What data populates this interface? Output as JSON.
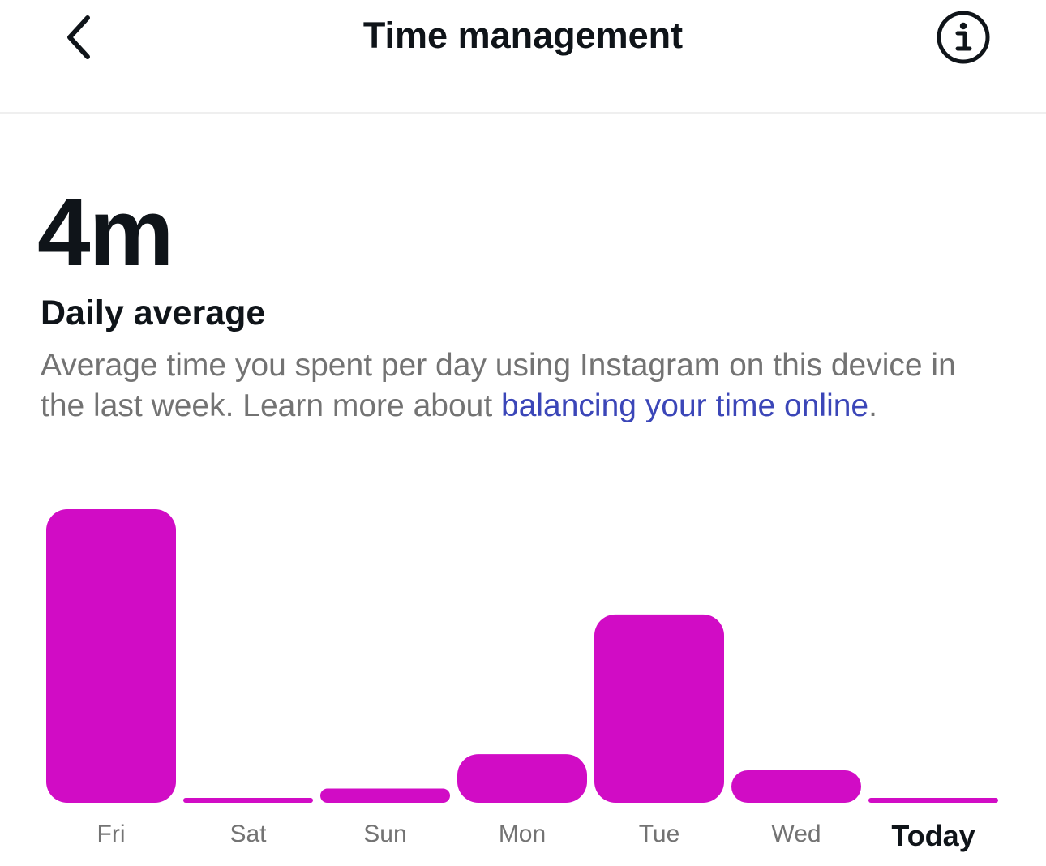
{
  "header": {
    "title": "Time management",
    "back_icon": "chevron-left-icon",
    "info_icon": "info-circle-icon"
  },
  "summary": {
    "value": "4m",
    "title": "Daily average",
    "description": "Average time you spent per day using Instagram on this device in the last week. Learn more about ",
    "link_text": "balancing your time online",
    "description_end": "."
  },
  "colors": {
    "bar": "#d10cc5",
    "link": "#3b46b8",
    "muted_text": "#737373",
    "strong_text": "#0f1419"
  },
  "chart_data": {
    "type": "bar",
    "categories": [
      "Fri",
      "Sat",
      "Sun",
      "Mon",
      "Tue",
      "Wed",
      "Today"
    ],
    "values": [
      14.5,
      0.1,
      0.7,
      2.4,
      9.3,
      1.6,
      0.1
    ],
    "highlight_category": "Today",
    "grid": false
  }
}
